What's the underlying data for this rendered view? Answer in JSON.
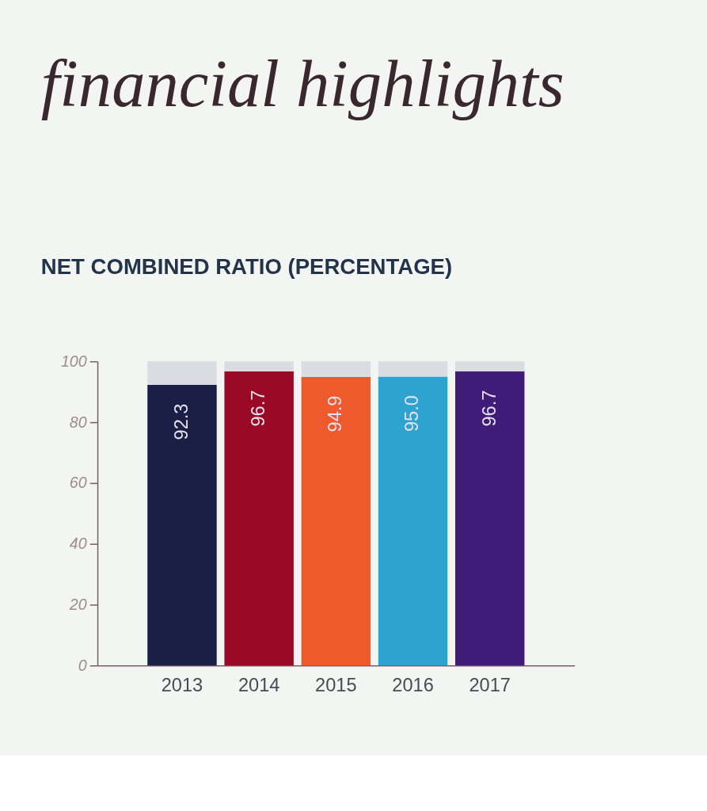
{
  "chart_data": {
    "type": "bar",
    "title": "financial highlights",
    "subtitle": "NET COMBINED RATIO (PERCENTAGE)",
    "categories": [
      "2013",
      "2014",
      "2015",
      "2016",
      "2017"
    ],
    "stacked": true,
    "series": [
      {
        "colors": [
          "#1b1f45",
          "#9a0a26",
          "#ee5a2b",
          "#2fa3cf",
          "#3f1c78"
        ],
        "values": [
          92.3,
          96.7,
          94.9,
          95.0,
          96.7
        ],
        "value_labels": [
          "92.3",
          "96.7",
          "94.9",
          "95.0",
          "96.7"
        ]
      },
      {
        "color": "#d9dde2",
        "values": [
          7.7,
          3.3,
          5.1,
          5.0,
          3.3
        ]
      }
    ],
    "ylim": [
      0,
      100
    ],
    "yticks": [
      0,
      20,
      40,
      60,
      80,
      100
    ],
    "grid": false,
    "legend": false
  }
}
